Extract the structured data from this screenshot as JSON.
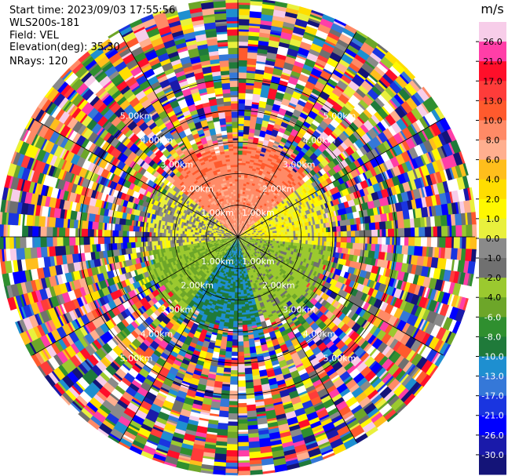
{
  "header": {
    "start_time": "Start time: 2023/09/03 17:55:56",
    "station": "WLS200s-181",
    "field": "Field: VEL",
    "elevation": "Elevation(deg): 35.30",
    "nrays": "NRays: 120"
  },
  "chart_data": {
    "type": "ppi-radar",
    "field": "VEL",
    "units": "m/s",
    "n_rays": 120,
    "range_rings_km": [
      1.0,
      2.0,
      3.0,
      4.0,
      5.0
    ],
    "ring_labels": [
      "1.00km",
      "2.00km",
      "3.00km",
      "4.00km",
      "5.00km"
    ],
    "colorbar": {
      "unit_label": "m/s",
      "ticks": [
        "26.0",
        "21.0",
        "17.0",
        "13.0",
        "10.0",
        "8.0",
        "6.0",
        "4.0",
        "2.0",
        "1.0",
        "0.0",
        "-1.0",
        "-2.0",
        "-4.0",
        "-6.0",
        "-8.0",
        "-10.0",
        "-13.0",
        "-17.0",
        "-21.0",
        "-26.0",
        "-30.0"
      ],
      "colors": [
        "#f7cde9",
        "#ff3ea7",
        "#ff0f2a",
        "#ff3c3a",
        "#ff5a2d",
        "#ff8a66",
        "#ffaf8f",
        "#ffbe1c",
        "#ffdd00",
        "#fff800",
        "#e9f03d",
        "#8a8a8a",
        "#707070",
        "#9bc92f",
        "#6da629",
        "#2f8f2f",
        "#1f7a3a",
        "#1e8fd0",
        "#3578d8",
        "#1a35e0",
        "#0000ff",
        "#1a1aaa",
        "#141478"
      ]
    },
    "pattern": {
      "near_range_max_km": 2.8,
      "sectors": [
        {
          "azimuth_from": 310,
          "azimuth_to": 50,
          "velocity_class": "receding",
          "typical_ms": 8.0
        },
        {
          "azimuth_from": 50,
          "azimuth_to": 95,
          "velocity_class": "near-zero",
          "typical_ms": 1.0
        },
        {
          "azimuth_from": 95,
          "azimuth_to": 165,
          "velocity_class": "approaching-weak",
          "typical_ms": -3.0
        },
        {
          "azimuth_from": 165,
          "azimuth_to": 215,
          "velocity_class": "approaching",
          "typical_ms": -10.0
        },
        {
          "azimuth_from": 215,
          "azimuth_to": 260,
          "velocity_class": "approaching-weak",
          "typical_ms": -4.0
        },
        {
          "azimuth_from": 260,
          "azimuth_to": 310,
          "velocity_class": "near-zero",
          "typical_ms": 0.0
        }
      ],
      "far_range": "noise"
    }
  }
}
